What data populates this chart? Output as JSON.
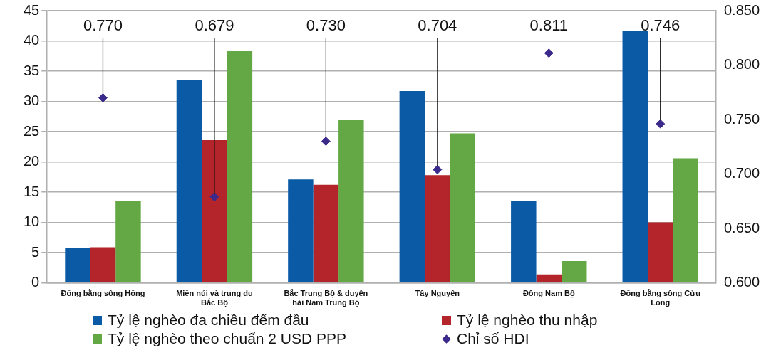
{
  "chart_data": {
    "type": "bar",
    "categories": [
      "Đồng bằng sông Hồng",
      "Miền núi và trung du Bắc Bộ",
      "Bắc Trung Bộ & duyên hải Nam Trung Bộ",
      "Tây Nguyên",
      "Đông Nam Bộ",
      "Đồng bằng sông Cửu Long"
    ],
    "series": [
      {
        "name": "Tỷ lệ nghèo đa chiều đếm đầu",
        "color": "#0a5aa5",
        "values": [
          5.8,
          33.6,
          17.1,
          31.7,
          13.5,
          41.6
        ]
      },
      {
        "name": "Tỷ lệ nghèo thu nhập",
        "color": "#b3252b",
        "values": [
          5.9,
          23.6,
          16.2,
          17.8,
          1.4,
          10.0
        ]
      },
      {
        "name": "Tỷ lệ nghèo theo chuẩn 2 USD PPP",
        "color": "#63a844",
        "values": [
          13.5,
          38.3,
          26.9,
          24.7,
          3.6,
          20.6
        ]
      },
      {
        "name": "Chỉ số HDI",
        "type": "scatter",
        "axis": "y2",
        "marker": "diamond",
        "color": "#3b2a8c",
        "values": [
          0.77,
          0.679,
          0.73,
          0.704,
          0.811,
          0.746
        ],
        "value_labels": [
          "0.770",
          "0.679",
          "0.730",
          "0.704",
          "0.811",
          "0.746"
        ]
      }
    ],
    "ylim": [
      0,
      45
    ],
    "yticks": [
      0,
      5,
      10,
      15,
      20,
      25,
      30,
      35,
      40,
      45
    ],
    "y2lim": [
      0.6,
      0.85
    ],
    "y2ticks": [
      {
        "value": 0.6,
        "label": "0.600"
      },
      {
        "value": 0.65,
        "label": "0.650"
      },
      {
        "value": 0.7,
        "label": "0.700"
      },
      {
        "value": 0.75,
        "label": "0.750"
      },
      {
        "value": 0.8,
        "label": "0.800"
      },
      {
        "value": 0.85,
        "label": "0.850"
      }
    ],
    "grid": "y",
    "legend": "bottom"
  }
}
